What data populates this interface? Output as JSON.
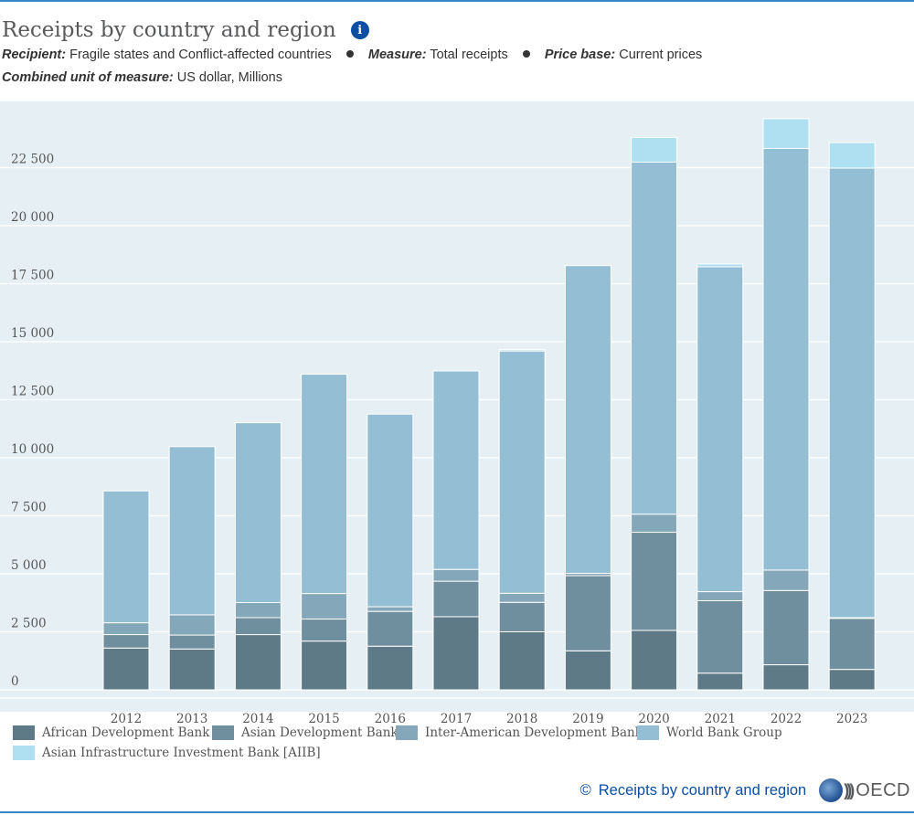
{
  "header": {
    "title": "Receipts by country and region",
    "recipient_label": "Recipient:",
    "recipient_value": "Fragile states and Conflict-affected countries",
    "measure_label": "Measure:",
    "measure_value": "Total receipts",
    "price_base_label": "Price base:",
    "price_base_value": "Current prices",
    "unit_label": "Combined unit of measure:",
    "unit_value": "US dollar, Millions",
    "info_icon": "info-icon"
  },
  "chart_data": {
    "type": "bar",
    "stacked": true,
    "title": "Receipts by country and region",
    "xlabel": "",
    "ylabel": "US dollar, Millions",
    "ylim": [
      0,
      25000
    ],
    "yticks": [
      0,
      2500,
      5000,
      7500,
      10000,
      12500,
      15000,
      17500,
      20000,
      22500
    ],
    "ytick_labels": [
      "0",
      "2 500",
      "5 000",
      "7 500",
      "10 000",
      "12 500",
      "15 000",
      "17 500",
      "20 000",
      "22 500"
    ],
    "categories": [
      "2012",
      "2013",
      "2014",
      "2015",
      "2016",
      "2017",
      "2018",
      "2019",
      "2020",
      "2021",
      "2022",
      "2023"
    ],
    "series": [
      {
        "name": "African Development Bank",
        "color": "#5f7a87",
        "values": [
          1800,
          1760,
          2380,
          2100,
          1880,
          3150,
          2500,
          1680,
          2560,
          720,
          1080,
          880
        ]
      },
      {
        "name": "Asian Development Bank",
        "color": "#6f8f9f",
        "values": [
          580,
          600,
          730,
          950,
          1500,
          1530,
          1270,
          3240,
          4230,
          3120,
          3200,
          2200
        ]
      },
      {
        "name": "Inter-American Development Bank",
        "color": "#84a8b9",
        "values": [
          510,
          870,
          650,
          1100,
          200,
          510,
          390,
          100,
          780,
          390,
          880,
          30
        ]
      },
      {
        "name": "World Bank Group",
        "color": "#93bed4",
        "values": [
          5680,
          7250,
          7750,
          9450,
          8300,
          8550,
          10440,
          13260,
          15170,
          14000,
          18170,
          19370
        ]
      },
      {
        "name": "Asian Infrastructure Investment Bank [AIIB]",
        "color": "#aee0f2",
        "values": [
          0,
          0,
          0,
          0,
          0,
          0,
          60,
          0,
          1060,
          120,
          1280,
          1100
        ]
      }
    ],
    "legend_position": "bottom",
    "grid": true,
    "source_link": "Receipts by country and region"
  },
  "footer": {
    "copyright_symbol": "©",
    "link_text": "Receipts by country and region",
    "logo_text": "OECD",
    "logo_arcs": ")))"
  }
}
